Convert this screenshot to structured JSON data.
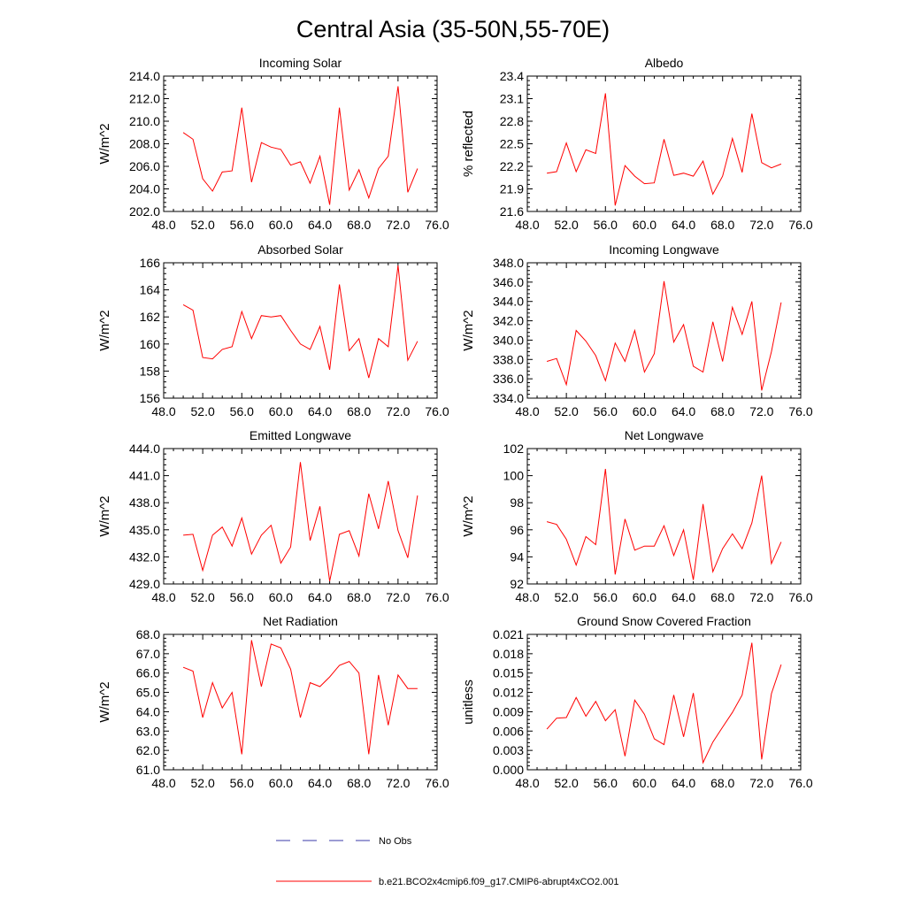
{
  "figure": {
    "title": "Central Asia (35-50N,55-70E)"
  },
  "legend": {
    "entries": [
      {
        "label": "No Obs",
        "color": "#3a3aa8",
        "dash": "dashed"
      },
      {
        "label": "b.e21.BCO2x4cmip6.f09_g17.CMIP6-abrupt4xCO2.001",
        "color": "#ff0000",
        "dash": "solid"
      }
    ]
  },
  "chart_data": [
    {
      "type": "line",
      "title": "Incoming Solar",
      "ylabel": "W/m^2",
      "xlim": [
        48,
        76
      ],
      "ylim": [
        202,
        214
      ],
      "xticks": [
        48,
        52,
        56,
        60,
        64,
        68,
        72,
        76
      ],
      "xtick_labels": [
        "48.0",
        "52.0",
        "56.0",
        "60.0",
        "64.0",
        "68.0",
        "72.0",
        "76.0"
      ],
      "yticks": [
        202,
        204,
        206,
        208,
        210,
        212,
        214
      ],
      "ytick_labels": [
        "202.0",
        "204.0",
        "206.0",
        "208.0",
        "210.0",
        "212.0",
        "214.0"
      ],
      "series": [
        {
          "color": "#ff0000",
          "x": [
            50,
            51,
            52,
            53,
            54,
            55,
            56,
            57,
            58,
            59,
            60,
            61,
            62,
            63,
            64,
            65,
            66,
            67,
            68,
            69,
            70,
            71,
            72,
            73,
            74
          ],
          "y": [
            209.0,
            208.4,
            204.9,
            203.8,
            205.5,
            205.6,
            211.2,
            204.6,
            208.1,
            207.7,
            207.5,
            206.1,
            206.4,
            204.5,
            206.9,
            202.6,
            211.2,
            203.9,
            205.7,
            203.2,
            205.8,
            206.9,
            213.1,
            203.7,
            205.8
          ]
        }
      ]
    },
    {
      "type": "line",
      "title": "Albedo",
      "ylabel": "% reflected",
      "xlim": [
        48,
        76
      ],
      "ylim": [
        21.6,
        23.4
      ],
      "xticks": [
        48,
        52,
        56,
        60,
        64,
        68,
        72,
        76
      ],
      "xtick_labels": [
        "48.0",
        "52.0",
        "56.0",
        "60.0",
        "64.0",
        "68.0",
        "72.0",
        "76.0"
      ],
      "yticks": [
        21.6,
        21.9,
        22.2,
        22.5,
        22.8,
        23.1,
        23.4
      ],
      "ytick_labels": [
        "21.6",
        "21.9",
        "22.2",
        "22.5",
        "22.8",
        "23.1",
        "23.4"
      ],
      "series": [
        {
          "color": "#ff0000",
          "x": [
            50,
            51,
            52,
            53,
            54,
            55,
            56,
            57,
            58,
            59,
            60,
            61,
            62,
            63,
            64,
            65,
            66,
            67,
            68,
            69,
            70,
            71,
            72,
            73,
            74
          ],
          "y": [
            22.11,
            22.13,
            22.51,
            22.13,
            22.42,
            22.37,
            23.17,
            21.68,
            22.21,
            22.07,
            21.97,
            21.98,
            22.56,
            22.08,
            22.11,
            22.07,
            22.27,
            21.83,
            22.07,
            22.57,
            22.12,
            22.9,
            22.25,
            22.18,
            22.23
          ]
        }
      ]
    },
    {
      "type": "line",
      "title": "Absorbed Solar",
      "ylabel": "W/m^2",
      "xlim": [
        48,
        76
      ],
      "ylim": [
        156,
        166
      ],
      "xticks": [
        48,
        52,
        56,
        60,
        64,
        68,
        72,
        76
      ],
      "xtick_labels": [
        "48.0",
        "52.0",
        "56.0",
        "60.0",
        "64.0",
        "68.0",
        "72.0",
        "76.0"
      ],
      "yticks": [
        156,
        158,
        160,
        162,
        164,
        166
      ],
      "ytick_labels": [
        "156",
        "158",
        "160",
        "162",
        "164",
        "166"
      ],
      "series": [
        {
          "color": "#ff0000",
          "x": [
            50,
            51,
            52,
            53,
            54,
            55,
            56,
            57,
            58,
            59,
            60,
            61,
            62,
            63,
            64,
            65,
            66,
            67,
            68,
            69,
            70,
            71,
            72,
            73,
            74
          ],
          "y": [
            162.9,
            162.5,
            159.0,
            158.9,
            159.6,
            159.8,
            162.4,
            160.4,
            162.1,
            162.0,
            162.1,
            161.0,
            160.0,
            159.6,
            161.3,
            158.1,
            164.4,
            159.5,
            160.4,
            157.5,
            160.4,
            159.8,
            165.8,
            158.8,
            160.2
          ]
        }
      ]
    },
    {
      "type": "line",
      "title": "Incoming Longwave",
      "ylabel": "W/m^2",
      "xlim": [
        48,
        76
      ],
      "ylim": [
        334,
        348
      ],
      "xticks": [
        48,
        52,
        56,
        60,
        64,
        68,
        72,
        76
      ],
      "xtick_labels": [
        "48.0",
        "52.0",
        "56.0",
        "60.0",
        "64.0",
        "68.0",
        "72.0",
        "76.0"
      ],
      "yticks": [
        334,
        336,
        338,
        340,
        342,
        344,
        346,
        348
      ],
      "ytick_labels": [
        "334.0",
        "336.0",
        "338.0",
        "340.0",
        "342.0",
        "344.0",
        "346.0",
        "348.0"
      ],
      "series": [
        {
          "color": "#ff0000",
          "x": [
            50,
            51,
            52,
            53,
            54,
            55,
            56,
            57,
            58,
            59,
            60,
            61,
            62,
            63,
            64,
            65,
            66,
            67,
            68,
            69,
            70,
            71,
            72,
            73,
            74
          ],
          "y": [
            337.8,
            338.1,
            335.4,
            341.0,
            339.9,
            338.4,
            335.8,
            339.7,
            337.8,
            341.0,
            336.7,
            338.6,
            346.1,
            339.8,
            341.6,
            337.3,
            336.7,
            341.9,
            337.8,
            343.4,
            340.6,
            344.0,
            334.8,
            338.8,
            343.9
          ]
        }
      ]
    },
    {
      "type": "line",
      "title": "Emitted Longwave",
      "ylabel": "W/m^2",
      "xlim": [
        48,
        76
      ],
      "ylim": [
        429,
        444
      ],
      "xticks": [
        48,
        52,
        56,
        60,
        64,
        68,
        72,
        76
      ],
      "xtick_labels": [
        "48.0",
        "52.0",
        "56.0",
        "60.0",
        "64.0",
        "68.0",
        "72.0",
        "76.0"
      ],
      "yticks": [
        429,
        432,
        435,
        438,
        441,
        444
      ],
      "ytick_labels": [
        "429.0",
        "432.0",
        "435.0",
        "438.0",
        "441.0",
        "444.0"
      ],
      "series": [
        {
          "color": "#ff0000",
          "x": [
            50,
            51,
            52,
            53,
            54,
            55,
            56,
            57,
            58,
            59,
            60,
            61,
            62,
            63,
            64,
            65,
            66,
            67,
            68,
            69,
            70,
            71,
            72,
            73,
            74
          ],
          "y": [
            434.4,
            434.5,
            430.5,
            434.4,
            435.3,
            433.2,
            436.3,
            432.3,
            434.4,
            435.5,
            431.3,
            433.1,
            442.5,
            433.8,
            437.6,
            429.3,
            434.5,
            434.9,
            432.1,
            439.0,
            435.1,
            440.4,
            434.9,
            431.9,
            438.8
          ]
        }
      ]
    },
    {
      "type": "line",
      "title": "Net Longwave",
      "ylabel": "W/m^2",
      "xlim": [
        48,
        76
      ],
      "ylim": [
        92,
        102
      ],
      "xticks": [
        48,
        52,
        56,
        60,
        64,
        68,
        72,
        76
      ],
      "xtick_labels": [
        "48.0",
        "52.0",
        "56.0",
        "60.0",
        "64.0",
        "68.0",
        "72.0",
        "76.0"
      ],
      "yticks": [
        92,
        94,
        96,
        98,
        100,
        102
      ],
      "ytick_labels": [
        "92",
        "94",
        "96",
        "98",
        "100",
        "102"
      ],
      "series": [
        {
          "color": "#ff0000",
          "x": [
            50,
            51,
            52,
            53,
            54,
            55,
            56,
            57,
            58,
            59,
            60,
            61,
            62,
            63,
            64,
            65,
            66,
            67,
            68,
            69,
            70,
            71,
            72,
            73,
            74
          ],
          "y": [
            96.6,
            96.4,
            95.3,
            93.4,
            95.5,
            94.9,
            100.5,
            92.7,
            96.8,
            94.5,
            94.8,
            94.8,
            96.3,
            94.1,
            96.0,
            92.3,
            97.9,
            92.9,
            94.6,
            95.7,
            94.6,
            96.5,
            100.0,
            93.5,
            95.1
          ]
        }
      ]
    },
    {
      "type": "line",
      "title": "Net Radiation",
      "ylabel": "W/m^2",
      "xlim": [
        48,
        76
      ],
      "ylim": [
        61,
        68
      ],
      "xticks": [
        48,
        52,
        56,
        60,
        64,
        68,
        72,
        76
      ],
      "xtick_labels": [
        "48.0",
        "52.0",
        "56.0",
        "60.0",
        "64.0",
        "68.0",
        "72.0",
        "76.0"
      ],
      "yticks": [
        61,
        62,
        63,
        64,
        65,
        66,
        67,
        68
      ],
      "ytick_labels": [
        "61.0",
        "62.0",
        "63.0",
        "64.0",
        "65.0",
        "66.0",
        "67.0",
        "68.0"
      ],
      "series": [
        {
          "color": "#ff0000",
          "x": [
            50,
            51,
            52,
            53,
            54,
            55,
            56,
            57,
            58,
            59,
            60,
            61,
            62,
            63,
            64,
            65,
            66,
            67,
            68,
            69,
            70,
            71,
            72,
            73,
            74
          ],
          "y": [
            66.3,
            66.1,
            63.7,
            65.5,
            64.2,
            65.0,
            61.8,
            67.7,
            65.3,
            67.5,
            67.3,
            66.2,
            63.7,
            65.5,
            65.3,
            65.8,
            66.4,
            66.6,
            66.0,
            61.8,
            65.9,
            63.3,
            65.9,
            65.2,
            65.2
          ]
        }
      ]
    },
    {
      "type": "line",
      "title": "Ground Snow Covered Fraction",
      "ylabel": "unitless",
      "xlim": [
        48,
        76
      ],
      "ylim": [
        0,
        0.021
      ],
      "xticks": [
        48,
        52,
        56,
        60,
        64,
        68,
        72,
        76
      ],
      "xtick_labels": [
        "48.0",
        "52.0",
        "56.0",
        "60.0",
        "64.0",
        "68.0",
        "72.0",
        "76.0"
      ],
      "yticks": [
        0,
        0.003,
        0.006,
        0.009,
        0.012,
        0.015,
        0.018,
        0.021
      ],
      "ytick_labels": [
        "0.000",
        "0.003",
        "0.006",
        "0.009",
        "0.012",
        "0.015",
        "0.018",
        "0.021"
      ],
      "series": [
        {
          "color": "#ff0000",
          "x": [
            50,
            51,
            52,
            53,
            54,
            55,
            56,
            57,
            58,
            59,
            60,
            61,
            62,
            63,
            64,
            65,
            66,
            67,
            68,
            69,
            70,
            71,
            72,
            73,
            74
          ],
          "y": [
            0.0063,
            0.008,
            0.0081,
            0.0112,
            0.0083,
            0.0106,
            0.0076,
            0.0093,
            0.0021,
            0.0108,
            0.0086,
            0.0048,
            0.0039,
            0.0116,
            0.0051,
            0.0119,
            0.0011,
            0.0043,
            0.0066,
            0.0089,
            0.0116,
            0.0197,
            0.0016,
            0.0118,
            0.0163
          ]
        }
      ]
    }
  ]
}
